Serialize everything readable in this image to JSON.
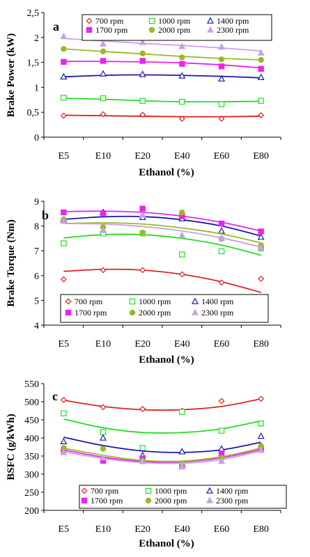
{
  "chart_data": [
    {
      "type": "line",
      "panel_label": "a",
      "xlabel": "Ethanol (%)",
      "ylabel": "Brake Power (kW)",
      "categories": [
        "E5",
        "E10",
        "E20",
        "E40",
        "E60",
        "E80"
      ],
      "ylim": [
        0,
        2.5
      ],
      "yticks": [
        "0",
        "0,5",
        "1",
        "1,5",
        "2",
        "2,5"
      ],
      "yticks_values": [
        0,
        0.5,
        1,
        1.5,
        2,
        2.5
      ],
      "legend_position": "top-right",
      "series": [
        {
          "name": "700 rpm",
          "color": "#e02020",
          "marker": "diamond-open",
          "values": [
            0.43,
            0.46,
            0.45,
            0.37,
            0.37,
            0.44
          ],
          "fit": [
            0.44,
            0.43,
            0.42,
            0.41,
            0.41,
            0.42
          ]
        },
        {
          "name": "1000 rpm",
          "color": "#22dd22",
          "marker": "square-open",
          "values": [
            0.79,
            0.78,
            0.73,
            0.71,
            0.66,
            0.73
          ],
          "fit": [
            0.78,
            0.76,
            0.73,
            0.71,
            0.71,
            0.72
          ]
        },
        {
          "name": "1400 rpm",
          "color": "#1a1aa8",
          "marker": "triangle-open",
          "values": [
            1.21,
            1.27,
            1.26,
            1.23,
            1.17,
            1.2
          ],
          "fit": [
            1.21,
            1.24,
            1.25,
            1.24,
            1.22,
            1.19
          ]
        },
        {
          "name": "1700 rpm",
          "color": "#ee22ee",
          "marker": "square-filled",
          "values": [
            1.51,
            1.53,
            1.53,
            1.47,
            1.42,
            1.37
          ],
          "fit": [
            1.52,
            1.52,
            1.51,
            1.49,
            1.45,
            1.39
          ]
        },
        {
          "name": "2000 rpm",
          "color": "#99bb22",
          "marker": "circle-filled",
          "values": [
            1.77,
            1.72,
            1.68,
            1.6,
            1.56,
            1.55
          ],
          "fit": [
            1.77,
            1.72,
            1.67,
            1.62,
            1.58,
            1.55
          ]
        },
        {
          "name": "2300 rpm",
          "color": "#c8a0e8",
          "marker": "triangle-filled",
          "values": [
            2.02,
            1.87,
            1.9,
            1.82,
            1.81,
            1.69
          ],
          "fit": [
            1.98,
            1.93,
            1.88,
            1.84,
            1.79,
            1.73
          ]
        }
      ]
    },
    {
      "type": "line",
      "panel_label": "b",
      "xlabel": "Ethanol (%)",
      "ylabel": "Brake Torque (Nm)",
      "categories": [
        "E5",
        "E10",
        "E20",
        "E40",
        "E60",
        "E80"
      ],
      "ylim": [
        4,
        9
      ],
      "yticks": [
        "4",
        "5",
        "6",
        "7",
        "8",
        "9"
      ],
      "yticks_values": [
        4,
        5,
        6,
        7,
        8,
        9
      ],
      "legend_position": "bottom",
      "series": [
        {
          "name": "700 rpm",
          "color": "#e02020",
          "marker": "diamond-open",
          "values": [
            5.85,
            6.22,
            6.22,
            6.05,
            5.72,
            5.87
          ],
          "fit": [
            6.17,
            6.25,
            6.22,
            6.05,
            5.75,
            5.32
          ]
        },
        {
          "name": "1000 rpm",
          "color": "#22dd22",
          "marker": "square-open",
          "values": [
            7.3,
            7.7,
            7.7,
            6.85,
            6.98,
            7.1
          ],
          "fit": [
            7.52,
            7.65,
            7.65,
            7.5,
            7.23,
            6.82
          ]
        },
        {
          "name": "1400 rpm",
          "color": "#1a1aa8",
          "marker": "triangle-open",
          "values": [
            8.25,
            8.55,
            8.35,
            8.3,
            7.8,
            7.55
          ],
          "fit": [
            8.27,
            8.37,
            8.38,
            8.25,
            8.0,
            7.6
          ]
        },
        {
          "name": "1700 rpm",
          "color": "#ee22ee",
          "marker": "square-filled",
          "values": [
            8.55,
            8.52,
            8.7,
            8.4,
            8.1,
            7.78
          ],
          "fit": [
            8.58,
            8.6,
            8.55,
            8.4,
            8.15,
            7.8
          ]
        },
        {
          "name": "2000 rpm",
          "color": "#99bb22",
          "marker": "circle-filled",
          "values": [
            8.27,
            7.95,
            7.73,
            8.55,
            7.48,
            7.22
          ],
          "fit": [
            8.1,
            8.13,
            8.08,
            7.92,
            7.68,
            7.32
          ]
        },
        {
          "name": "2300 rpm",
          "color": "#c8a0e8",
          "marker": "triangle-filled",
          "values": [
            8.2,
            7.82,
            8.45,
            7.62,
            7.5,
            7.12
          ],
          "fit": [
            8.1,
            8.08,
            7.98,
            7.8,
            7.52,
            7.15
          ]
        }
      ]
    },
    {
      "type": "line",
      "panel_label": "c",
      "xlabel": "Ethanol (%)",
      "ylabel": "BSFC (g/kWh)",
      "categories": [
        "E5",
        "E10",
        "E20",
        "E40",
        "E60",
        "E80"
      ],
      "ylim": [
        200,
        550
      ],
      "yticks": [
        "200",
        "250",
        "300",
        "350",
        "400",
        "450",
        "500",
        "550"
      ],
      "yticks_values": [
        200,
        250,
        300,
        350,
        400,
        450,
        500,
        550
      ],
      "legend_position": "bottom",
      "series": [
        {
          "name": "700 rpm",
          "color": "#e02020",
          "marker": "diamond-open",
          "values": [
            505,
            485,
            480,
            475,
            502,
            508
          ],
          "fit": [
            504,
            487,
            478,
            478,
            487,
            508
          ]
        },
        {
          "name": "1000 rpm",
          "color": "#22dd22",
          "marker": "square-open",
          "values": [
            468,
            416,
            372,
            472,
            420,
            440
          ],
          "fit": [
            452,
            428,
            415,
            415,
            425,
            447
          ]
        },
        {
          "name": "1400 rpm",
          "color": "#1a1aa8",
          "marker": "triangle-open",
          "values": [
            390,
            400,
            352,
            362,
            370,
            405
          ],
          "fit": [
            402,
            379,
            364,
            360,
            367,
            388
          ]
        },
        {
          "name": "1700 rpm",
          "color": "#ee22ee",
          "marker": "square-filled",
          "values": [
            367,
            337,
            343,
            322,
            357,
            368
          ],
          "fit": [
            367,
            347,
            335,
            334,
            345,
            368
          ]
        },
        {
          "name": "2000 rpm",
          "color": "#99bb22",
          "marker": "circle-filled",
          "values": [
            372,
            370,
            337,
            330,
            345,
            378
          ],
          "fit": [
            372,
            352,
            338,
            336,
            348,
            372
          ]
        },
        {
          "name": "2300 rpm",
          "color": "#c8a0e8",
          "marker": "triangle-filled",
          "values": [
            360,
            345,
            335,
            320,
            336,
            366
          ],
          "fit": [
            362,
            343,
            332,
            330,
            340,
            364
          ]
        }
      ]
    }
  ]
}
